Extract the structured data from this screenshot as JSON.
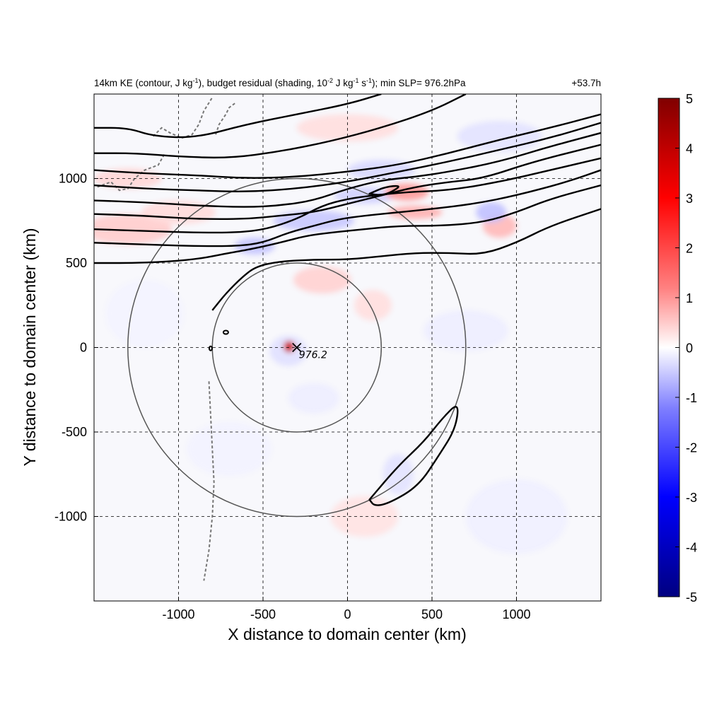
{
  "title": {
    "prefix": "14km KE (contour, J kg",
    "sup1": "-1",
    "mid1": "), budget residual (shading, 10",
    "sup2": "-2",
    "mid2": " J kg",
    "sup3": "-1",
    "mid3": " s",
    "sup4": "-1",
    "suffix": "); min SLP= 976.2hPa",
    "time": "+53.7h"
  },
  "chart_data": {
    "type": "heatmap",
    "xlabel": "X distance to domain center (km)",
    "ylabel": "Y distance to domain center (km)",
    "xlim": [
      -1500,
      1500
    ],
    "ylim": [
      -1500,
      1500
    ],
    "xticks": [
      -1000,
      -500,
      0,
      500,
      1000
    ],
    "yticks": [
      -1000,
      -500,
      0,
      500,
      1000
    ],
    "grid": true,
    "colorbar": {
      "range": [
        -5,
        5
      ],
      "ticks": [
        5,
        4,
        3,
        2,
        1,
        0,
        -1,
        -2,
        -3,
        -4,
        -5
      ],
      "colors": [
        "#0000aa",
        "#0000ff",
        "#8080ff",
        "#ffffff",
        "#ff8080",
        "#ff0000",
        "#800000"
      ]
    },
    "circles_km": [
      500,
      1000
    ],
    "center": {
      "x": -300,
      "y": 0
    },
    "min_slp_label": "976.2",
    "contours_km": [
      [
        [
          -1500,
          1050
        ],
        [
          -1200,
          1030
        ],
        [
          -900,
          1020
        ],
        [
          -600,
          1000
        ],
        [
          -300,
          1010
        ],
        [
          0,
          1040
        ],
        [
          300,
          1080
        ],
        [
          600,
          1150
        ],
        [
          900,
          1230
        ],
        [
          1200,
          1300
        ],
        [
          1500,
          1380
        ]
      ],
      [
        [
          -1500,
          960
        ],
        [
          -1200,
          940
        ],
        [
          -900,
          930
        ],
        [
          -600,
          920
        ],
        [
          -300,
          940
        ],
        [
          0,
          980
        ],
        [
          300,
          1040
        ],
        [
          600,
          1100
        ],
        [
          900,
          1170
        ],
        [
          1200,
          1240
        ],
        [
          1500,
          1330
        ]
      ],
      [
        [
          -1500,
          870
        ],
        [
          -1200,
          860
        ],
        [
          -900,
          840
        ],
        [
          -600,
          830
        ],
        [
          -400,
          840
        ],
        [
          -200,
          870
        ],
        [
          0,
          940
        ],
        [
          200,
          990
        ],
        [
          400,
          1010
        ],
        [
          600,
          1040
        ],
        [
          900,
          1100
        ],
        [
          1200,
          1190
        ],
        [
          1500,
          1270
        ]
      ],
      [
        [
          -1500,
          790
        ],
        [
          -1200,
          780
        ],
        [
          -900,
          760
        ],
        [
          -600,
          760
        ],
        [
          -400,
          780
        ],
        [
          -200,
          800
        ],
        [
          0,
          850
        ],
        [
          200,
          900
        ],
        [
          400,
          950
        ],
        [
          600,
          980
        ],
        [
          800,
          1000
        ],
        [
          1100,
          1100
        ],
        [
          1500,
          1200
        ]
      ],
      [
        [
          -1500,
          700
        ],
        [
          -1200,
          690
        ],
        [
          -900,
          680
        ],
        [
          -650,
          680
        ],
        [
          -480,
          700
        ],
        [
          -300,
          760
        ],
        [
          -150,
          840
        ],
        [
          0,
          880
        ],
        [
          150,
          900
        ],
        [
          350,
          920
        ],
        [
          600,
          930
        ],
        [
          900,
          980
        ],
        [
          1200,
          1050
        ],
        [
          1500,
          1120
        ]
      ],
      [
        [
          -1500,
          620
        ],
        [
          -1200,
          610
        ],
        [
          -900,
          600
        ],
        [
          -650,
          600
        ],
        [
          -500,
          620
        ],
        [
          -350,
          680
        ],
        [
          -200,
          720
        ],
        [
          -50,
          760
        ],
        [
          100,
          780
        ],
        [
          300,
          800
        ],
        [
          500,
          820
        ],
        [
          750,
          850
        ],
        [
          1000,
          900
        ],
        [
          1300,
          980
        ],
        [
          1500,
          1050
        ]
      ],
      [
        [
          -1500,
          500
        ],
        [
          -1200,
          500
        ],
        [
          -900,
          520
        ],
        [
          -700,
          560
        ],
        [
          -580,
          580
        ],
        [
          -400,
          620
        ],
        [
          -250,
          660
        ],
        [
          -100,
          680
        ],
        [
          100,
          700
        ],
        [
          300,
          720
        ],
        [
          550,
          720
        ],
        [
          800,
          740
        ],
        [
          1000,
          800
        ],
        [
          1200,
          880
        ],
        [
          1500,
          960
        ]
      ],
      [
        [
          -800,
          220
        ],
        [
          -720,
          320
        ],
        [
          -620,
          420
        ],
        [
          -540,
          480
        ],
        [
          -400,
          510
        ],
        [
          -200,
          520
        ],
        [
          0,
          520
        ],
        [
          200,
          540
        ],
        [
          400,
          560
        ],
        [
          600,
          560
        ],
        [
          800,
          550
        ],
        [
          1000,
          620
        ],
        [
          1200,
          720
        ],
        [
          1500,
          820
        ]
      ],
      [
        [
          -1500,
          1300
        ],
        [
          -1300,
          1300
        ],
        [
          -1150,
          1250
        ],
        [
          -900,
          1240
        ],
        [
          -600,
          1320
        ],
        [
          -300,
          1380
        ],
        [
          0,
          1440
        ],
        [
          200,
          1500
        ]
      ],
      [
        [
          -1500,
          1150
        ],
        [
          -1250,
          1150
        ],
        [
          -1000,
          1130
        ],
        [
          -700,
          1120
        ],
        [
          -400,
          1160
        ],
        [
          -100,
          1220
        ],
        [
          200,
          1300
        ],
        [
          500,
          1400
        ],
        [
          700,
          1500
        ]
      ]
    ],
    "closed_contours_km": [
      [
        [
          130,
          910
        ],
        [
          220,
          950
        ],
        [
          320,
          960
        ],
        [
          260,
          920
        ],
        [
          200,
          900
        ],
        [
          130,
          910
        ]
      ],
      [
        [
          130,
          -900
        ],
        [
          300,
          -700
        ],
        [
          450,
          -560
        ],
        [
          560,
          -420
        ],
        [
          660,
          -320
        ],
        [
          640,
          -480
        ],
        [
          540,
          -640
        ],
        [
          420,
          -820
        ],
        [
          250,
          -920
        ],
        [
          160,
          -940
        ],
        [
          130,
          -900
        ]
      ]
    ]
  }
}
